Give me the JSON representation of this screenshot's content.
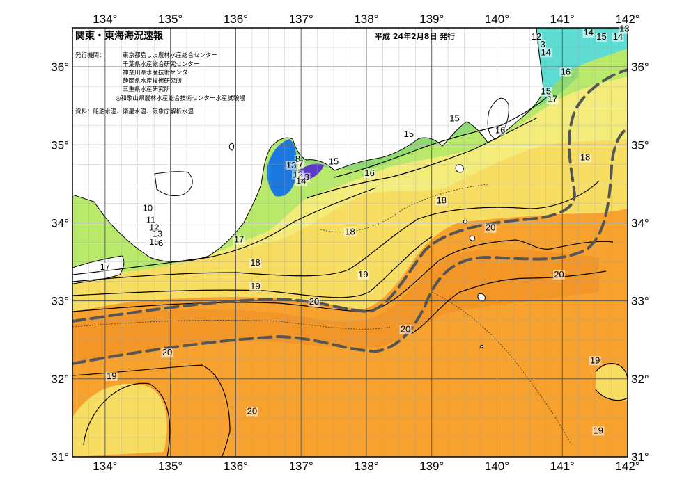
{
  "header": {
    "title": "関東・東海海況速報",
    "date": "平成 24年2月8日 発行",
    "publisher_label": "発行機関：",
    "publishers": [
      "東京都島しょ農林水産総合センター",
      "千葉県水産総合研究センター",
      "神奈川県水産技術センター",
      "静岡県水産技術研究所",
      "三重県水産研究所",
      "◎和歌山県農林水産総合技術センター水産試験場"
    ],
    "sources": "資料：船舶水温、衛星水温、気象庁解析水温"
  },
  "axes": {
    "lon_ticks": [
      {
        "value": 134,
        "label": "134°"
      },
      {
        "value": 135,
        "label": "135°"
      },
      {
        "value": 136,
        "label": "136°"
      },
      {
        "value": 137,
        "label": "137°"
      },
      {
        "value": 138,
        "label": "138°"
      },
      {
        "value": 139,
        "label": "139°"
      },
      {
        "value": 140,
        "label": "140°"
      },
      {
        "value": 141,
        "label": "141°"
      },
      {
        "value": 142,
        "label": "142°"
      }
    ],
    "lat_ticks": [
      {
        "value": 36,
        "label": "36°"
      },
      {
        "value": 35,
        "label": "35°"
      },
      {
        "value": 34,
        "label": "34°"
      },
      {
        "value": 33,
        "label": "33°"
      },
      {
        "value": 32,
        "label": "32°"
      },
      {
        "value": 31,
        "label": "31°"
      }
    ],
    "lon_range": [
      133.5,
      142
    ],
    "lat_range": [
      31,
      36.5
    ]
  },
  "isotherm_labels": [
    {
      "text": "20",
      "lon": 137.2,
      "lat": 32.95
    },
    {
      "text": "20",
      "lon": 134.95,
      "lat": 32.3
    },
    {
      "text": "20",
      "lon": 136.25,
      "lat": 31.55
    },
    {
      "text": "20",
      "lon": 138.6,
      "lat": 32.6
    },
    {
      "text": "20",
      "lon": 139.9,
      "lat": 33.9
    },
    {
      "text": "20",
      "lon": 140.95,
      "lat": 33.3
    },
    {
      "text": "19",
      "lon": 134.1,
      "lat": 32.0
    },
    {
      "text": "19",
      "lon": 136.3,
      "lat": 33.15
    },
    {
      "text": "19",
      "lon": 137.95,
      "lat": 33.3
    },
    {
      "text": "19",
      "lon": 141.5,
      "lat": 32.2
    },
    {
      "text": "19",
      "lon": 141.55,
      "lat": 31.3
    },
    {
      "text": "18",
      "lon": 136.3,
      "lat": 33.45
    },
    {
      "text": "18",
      "lon": 137.75,
      "lat": 33.85
    },
    {
      "text": "18",
      "lon": 139.15,
      "lat": 34.25
    },
    {
      "text": "18",
      "lon": 141.35,
      "lat": 34.8
    },
    {
      "text": "17",
      "lon": 136.05,
      "lat": 33.75
    },
    {
      "text": "17",
      "lon": 134.0,
      "lat": 33.4
    },
    {
      "text": "17",
      "lon": 140.85,
      "lat": 35.55
    },
    {
      "text": "16",
      "lon": 138.05,
      "lat": 34.6
    },
    {
      "text": "16",
      "lon": 140.05,
      "lat": 35.15
    },
    {
      "text": "16",
      "lon": 141.05,
      "lat": 35.9
    },
    {
      "text": "15",
      "lon": 137.5,
      "lat": 34.75
    },
    {
      "text": "15",
      "lon": 138.65,
      "lat": 35.1
    },
    {
      "text": "15",
      "lon": 139.35,
      "lat": 35.3
    },
    {
      "text": "15",
      "lon": 140.75,
      "lat": 35.65
    },
    {
      "text": "15",
      "lon": 141.6,
      "lat": 36.35
    },
    {
      "text": "14",
      "lon": 141.4,
      "lat": 36.4
    },
    {
      "text": "14",
      "lon": 141.85,
      "lat": 36.35
    },
    {
      "text": "14",
      "lon": 140.75,
      "lat": 36.15
    },
    {
      "text": "13",
      "lon": 141.95,
      "lat": 36.45
    },
    {
      "text": "12",
      "lon": 140.6,
      "lat": 36.35
    },
    {
      "text": "3",
      "lon": 140.7,
      "lat": 36.25
    },
    {
      "text": "10",
      "lon": 134.65,
      "lat": 34.15
    },
    {
      "text": "11",
      "lon": 134.7,
      "lat": 34.0
    },
    {
      "text": "12",
      "lon": 134.75,
      "lat": 33.9
    },
    {
      "text": "13",
      "lon": 134.8,
      "lat": 33.82
    },
    {
      "text": "15",
      "lon": 134.75,
      "lat": 33.72
    },
    {
      "text": "6",
      "lon": 134.85,
      "lat": 33.7
    },
    {
      "text": "13",
      "lon": 136.85,
      "lat": 34.7
    },
    {
      "text": "8",
      "lon": 136.95,
      "lat": 34.78
    },
    {
      "text": "7",
      "lon": 137.0,
      "lat": 34.72
    },
    {
      "text": "12",
      "lon": 136.95,
      "lat": 34.58
    },
    {
      "text": "13",
      "lon": 137.05,
      "lat": 34.55
    },
    {
      "text": "14",
      "lon": 137.0,
      "lat": 34.5
    }
  ],
  "colors": {
    "warm": "#f7a12e",
    "yellow": "#f8dd63",
    "green": "#b4e96a",
    "cold": "#0f6fe2",
    "land": "#ffffff",
    "kuroshio_axis": "#555555"
  }
}
